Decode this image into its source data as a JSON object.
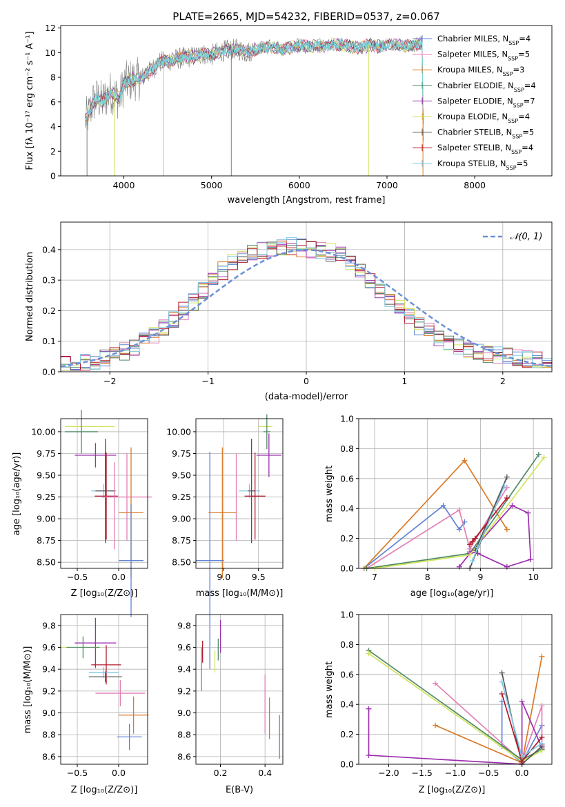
{
  "colors": {
    "gray": "#7f7f7f",
    "cyan": "#78d6dc",
    "Chabrier MILES": "#5f82d4",
    "Salpeter MILES": "#e47fb6",
    "Kroupa MILES": "#d97a26",
    "Chabrier ELODIE": "#4f8a66",
    "Salpeter ELODIE": "#9b2fae",
    "Kroupa ELODIE": "#d2e35b",
    "Chabrier STELIB": "#555555",
    "Salpeter STELIB": "#b2182b",
    "Kroupa STELIB": "#7ec8e3",
    "normal": "#6a8fd6"
  },
  "spectrum": {
    "title": "PLATE=2665, MJD=54232, FIBERID=0537, z=0.067",
    "xlabel": "wavelength [Angstrom, rest frame]",
    "ylabel": "Flux [fλ 10⁻¹⁷ erg cm⁻² s⁻¹ A⁻¹]",
    "xticks": [
      "4000",
      "5000",
      "6000",
      "7000",
      "8000"
    ],
    "yticks": [
      "0",
      "2",
      "4",
      "6",
      "8",
      "10",
      "12"
    ],
    "legend": [
      {
        "label": "Chabrier MILES, N",
        "sub": "SSP",
        "tail": "=4",
        "color": "Chabrier MILES"
      },
      {
        "label": "Salpeter MILES, N",
        "sub": "SSP",
        "tail": "=5",
        "color": "Salpeter MILES"
      },
      {
        "label": "Kroupa MILES, N",
        "sub": "SSP",
        "tail": "=3",
        "color": "Kroupa MILES"
      },
      {
        "label": "Chabrier ELODIE, N",
        "sub": "SSP",
        "tail": "=4",
        "color": "Chabrier ELODIE"
      },
      {
        "label": "Salpeter ELODIE, N",
        "sub": "SSP",
        "tail": "=7",
        "color": "Salpeter ELODIE"
      },
      {
        "label": "Kroupa ELODIE, N",
        "sub": "SSP",
        "tail": "=4",
        "color": "Kroupa ELODIE"
      },
      {
        "label": "Chabrier STELIB, N",
        "sub": "SSP",
        "tail": "=5",
        "color": "Chabrier STELIB"
      },
      {
        "label": "Salpeter STELIB, N",
        "sub": "SSP",
        "tail": "=4",
        "color": "Salpeter STELIB"
      },
      {
        "label": "Kroupa STELIB, N",
        "sub": "SSP",
        "tail": "=5",
        "color": "Kroupa STELIB"
      }
    ]
  },
  "residuals": {
    "xlabel": "(data-model)/error",
    "ylabel": "Normed distribution",
    "xticks": [
      "−2",
      "−1",
      "0",
      "1",
      "2"
    ],
    "yticks": [
      "0.0",
      "0.1",
      "0.2",
      "0.3",
      "0.4"
    ],
    "legend_label": "𝒩(0, 1)"
  },
  "panels": {
    "age_z": {
      "xlabel": "Z [log₁₀(Z/Z⊙)]",
      "ylabel": "age  [log₁₀(age/yr)]",
      "xticks": [
        "−0.5",
        "0.0"
      ],
      "yticks": [
        "8.50",
        "8.75",
        "9.00",
        "9.25",
        "9.50",
        "9.75",
        "10.00"
      ]
    },
    "age_mass": {
      "xlabel": "mass [log₁₀(M/M⊙)]",
      "xticks": [
        "9.0",
        "9.5"
      ],
      "yticks": [
        "8.50",
        "8.75",
        "9.00",
        "9.25",
        "9.50",
        "9.75",
        "10.00"
      ]
    },
    "weight_age": {
      "xlabel": "age  [log₁₀(age/yr)]",
      "ylabel": "mass weight",
      "xticks": [
        "7",
        "8",
        "9",
        "10"
      ],
      "yticks": [
        "0.0",
        "0.2",
        "0.4",
        "0.6",
        "0.8",
        "1.0"
      ]
    },
    "mass_z": {
      "xlabel": "Z [log₁₀(Z/Z⊙)]",
      "ylabel": "mass [log₁₀(M/M⊙)]",
      "xticks": [
        "−0.5",
        "0.0"
      ],
      "yticks": [
        "8.6",
        "8.8",
        "9.0",
        "9.2",
        "9.4",
        "9.6",
        "9.8"
      ]
    },
    "mass_ebv": {
      "xlabel": "E(B-V)",
      "xticks": [
        "0.2",
        "0.4"
      ],
      "yticks": [
        "8.6",
        "8.8",
        "9.0",
        "9.2",
        "9.4",
        "9.6",
        "9.8"
      ]
    },
    "weight_z": {
      "xlabel": "Z [log₁₀(Z/Z⊙)]",
      "ylabel": "mass weight",
      "xticks": [
        "−2.0",
        "−1.5",
        "−1.0",
        "−0.5",
        "0.0"
      ],
      "yticks": [
        "0.0",
        "0.2",
        "0.4",
        "0.6",
        "0.8",
        "1.0"
      ]
    }
  },
  "chart_data": [
    {
      "type": "line",
      "title": "PLATE=2665, MJD=54232, FIBERID=0537, z=0.067",
      "xlabel": "wavelength [Angstrom, rest frame]",
      "ylabel": "Flux [fλ 10⁻¹⁷ erg cm⁻² s⁻¹ A⁻¹]",
      "xlim": [
        3280,
        8880
      ],
      "ylim": [
        0,
        12.2
      ],
      "legend_position": "top-right",
      "data_curve": {
        "x": [
          3560,
          3600,
          3650,
          3700,
          3750,
          3800,
          3850,
          3900,
          3950,
          4000,
          4100,
          4200,
          4300,
          4400,
          4500,
          4600,
          4700,
          4800,
          4900,
          5000,
          5100,
          5200,
          5300,
          5400,
          5500,
          5600,
          5700,
          5800,
          5900,
          6000,
          6100,
          6200,
          6300,
          6400,
          6500,
          6600,
          6700,
          6800,
          6900,
          7000,
          7100,
          7200,
          7300,
          7400,
          7420
        ],
        "y": [
          4.5,
          5.0,
          6.0,
          6.3,
          6.0,
          6.4,
          6.8,
          6.6,
          6.2,
          7.5,
          7.8,
          7.9,
          8.5,
          9.2,
          9.3,
          9.5,
          9.6,
          9.7,
          9.9,
          9.8,
          10.1,
          10.2,
          10.3,
          10.0,
          10.3,
          10.4,
          10.5,
          10.2,
          10.4,
          10.6,
          10.5,
          10.6,
          10.5,
          10.7,
          10.6,
          10.5,
          10.4,
          10.6,
          10.5,
          10.6,
          10.7,
          10.5,
          10.6,
          10.8,
          0
        ]
      },
      "drop_lines_x": [
        3580,
        3890,
        4450,
        5225,
        6790,
        7410
      ],
      "series_names": [
        "Chabrier MILES",
        "Salpeter MILES",
        "Kroupa MILES",
        "Chabrier ELODIE",
        "Salpeter ELODIE",
        "Kroupa ELODIE",
        "Chabrier STELIB",
        "Salpeter STELIB",
        "Kroupa STELIB"
      ]
    },
    {
      "type": "histogram",
      "xlabel": "(data-model)/error",
      "ylabel": "Normed distribution",
      "xlim": [
        -2.5,
        2.5
      ],
      "ylim": [
        0,
        0.49
      ],
      "bin_centers": [
        -2.45,
        -2.35,
        -2.25,
        -2.15,
        -2.05,
        -1.95,
        -1.85,
        -1.75,
        -1.65,
        -1.55,
        -1.45,
        -1.35,
        -1.25,
        -1.15,
        -1.05,
        -0.95,
        -0.85,
        -0.75,
        -0.65,
        -0.55,
        -0.45,
        -0.35,
        -0.25,
        -0.15,
        -0.05,
        0.05,
        0.15,
        0.25,
        0.35,
        0.45,
        0.55,
        0.65,
        0.75,
        0.85,
        0.95,
        1.05,
        1.15,
        1.25,
        1.35,
        1.45,
        1.55,
        1.65,
        1.75,
        1.85,
        1.95,
        2.05,
        2.15,
        2.25,
        2.35,
        2.45
      ],
      "typical_density": [
        0.022,
        0.025,
        0.03,
        0.038,
        0.045,
        0.055,
        0.068,
        0.082,
        0.1,
        0.12,
        0.145,
        0.17,
        0.2,
        0.23,
        0.265,
        0.3,
        0.33,
        0.36,
        0.38,
        0.395,
        0.4,
        0.405,
        0.41,
        0.41,
        0.405,
        0.4,
        0.395,
        0.39,
        0.38,
        0.36,
        0.335,
        0.3,
        0.27,
        0.24,
        0.21,
        0.18,
        0.15,
        0.13,
        0.11,
        0.095,
        0.085,
        0.075,
        0.068,
        0.06,
        0.055,
        0.05,
        0.045,
        0.04,
        0.035,
        0.03
      ],
      "normal_curve": {
        "label": "𝒩(0, 1)",
        "mean": 0,
        "sigma": 1
      },
      "series_names": [
        "Chabrier MILES",
        "Salpeter MILES",
        "Kroupa MILES",
        "Chabrier ELODIE",
        "Salpeter ELODIE",
        "Kroupa ELODIE",
        "Chabrier STELIB",
        "Salpeter STELIB",
        "Kroupa STELIB"
      ]
    },
    {
      "type": "errorbar",
      "panel": "age vs Z",
      "xlim": [
        -0.7,
        0.35
      ],
      "ylim": [
        8.43,
        10.15
      ],
      "points": [
        {
          "series": "Kroupa ELODIE",
          "x": -0.35,
          "y": 10.06,
          "xerr": 0.3,
          "yerr": 0
        },
        {
          "series": "Chabrier ELODIE",
          "x": -0.45,
          "y": 10.0,
          "xerr": 0.2,
          "yerr": 0.25
        },
        {
          "series": "Salpeter ELODIE",
          "x": -0.28,
          "y": 9.73,
          "xerr": 0.25,
          "yerr": 0.14
        },
        {
          "series": "Chabrier MILES",
          "x": -0.16,
          "y": 9.62,
          "xerr": 0,
          "yerr": 0.25
        },
        {
          "series": "Kroupa STELIB",
          "x": -0.18,
          "y": 9.32,
          "xerr": 0.15,
          "yerr": 0.08
        },
        {
          "series": "Chabrier STELIB",
          "x": -0.16,
          "y": 9.32,
          "xerr": 0.12,
          "yerr": 0.6
        },
        {
          "series": "Salpeter STELIB",
          "x": -0.15,
          "y": 9.26,
          "xerr": 0.14,
          "yerr": 0.5
        },
        {
          "series": "Salpeter MILES",
          "x": 0.1,
          "y": 9.25,
          "xerr": 0.3,
          "yerr": 0.5
        },
        {
          "series": "Salpeter MILES",
          "x": -0.05,
          "y": 9.15,
          "xerr": 0,
          "yerr": 0.5
        },
        {
          "series": "Kroupa MILES",
          "x": 0.15,
          "y": 9.07,
          "xerr": 0.15,
          "yerr": 0.75
        },
        {
          "series": "Chabrier MILES",
          "x": 0.15,
          "y": 8.52,
          "xerr": 0.15,
          "yerr": 0.65
        }
      ]
    },
    {
      "type": "errorbar",
      "panel": "age vs mass",
      "xlim": [
        8.6,
        9.85
      ],
      "ylim": [
        8.43,
        10.15
      ],
      "points": [
        {
          "series": "Kroupa ELODIE",
          "x": 9.6,
          "y": 10.06,
          "xerr": 0.1,
          "yerr": 0
        },
        {
          "series": "Chabrier ELODIE",
          "x": 9.62,
          "y": 10.0,
          "xerr": 0.05,
          "yerr": 0.2
        },
        {
          "series": "Salpeter ELODIE",
          "x": 9.65,
          "y": 9.73,
          "xerr": 0.18,
          "yerr": 0.25
        },
        {
          "series": "Kroupa STELIB",
          "x": 9.37,
          "y": 9.32,
          "xerr": 0.15,
          "yerr": 0.08
        },
        {
          "series": "Chabrier STELIB",
          "x": 9.4,
          "y": 9.32,
          "xerr": 0.05,
          "yerr": 0.6
        },
        {
          "series": "Salpeter STELIB",
          "x": 9.45,
          "y": 9.26,
          "xerr": 0.15,
          "yerr": 0.5
        },
        {
          "series": "Salpeter MILES",
          "x": 9.18,
          "y": 9.25,
          "xerr": 0,
          "yerr": 0.5
        },
        {
          "series": "Kroupa MILES",
          "x": 8.98,
          "y": 9.07,
          "xerr": 0.2,
          "yerr": 0.75
        },
        {
          "series": "Chabrier MILES",
          "x": 8.8,
          "y": 8.52,
          "xerr": 0.2,
          "yerr": 1.25
        }
      ]
    },
    {
      "type": "line",
      "panel": "mass weight vs age",
      "xlim": [
        6.7,
        10.35
      ],
      "ylim": [
        0,
        1.0
      ],
      "series": [
        {
          "series": "Chabrier MILES",
          "x": [
            6.8,
            8.3,
            8.6,
            8.7
          ],
          "y": [
            0.0,
            0.42,
            0.26,
            0.31
          ]
        },
        {
          "series": "Salpeter MILES",
          "x": [
            6.85,
            8.6,
            8.8,
            9.5
          ],
          "y": [
            0.0,
            0.39,
            0.13,
            0.54
          ]
        },
        {
          "series": "Kroupa MILES",
          "x": [
            6.8,
            8.7,
            9.5
          ],
          "y": [
            0.0,
            0.72,
            0.26
          ]
        },
        {
          "series": "Chabrier ELODIE",
          "x": [
            6.85,
            8.8,
            10.1
          ],
          "y": [
            0.0,
            0.1,
            0.76
          ]
        },
        {
          "series": "Salpeter ELODIE",
          "x": [
            8.6,
            8.8,
            9.6,
            9.9,
            9.95,
            9.5,
            8.95,
            8.8
          ],
          "y": [
            0.01,
            0.1,
            0.42,
            0.37,
            0.06,
            0.01,
            0.1,
            0.11
          ]
        },
        {
          "series": "Kroupa ELODIE",
          "x": [
            7.0,
            8.8,
            10.2
          ],
          "y": [
            0.0,
            0.09,
            0.74
          ]
        },
        {
          "series": "Chabrier STELIB",
          "x": [
            8.8,
            9.5,
            8.9
          ],
          "y": [
            0.0,
            0.61,
            0.12
          ]
        },
        {
          "series": "Salpeter STELIB",
          "x": [
            8.8,
            8.9,
            9.5,
            8.85
          ],
          "y": [
            0.16,
            0.2,
            0.47,
            0.18
          ]
        },
        {
          "series": "Kroupa STELIB",
          "x": [
            8.85,
            8.95,
            9.45
          ],
          "y": [
            0.05,
            0.14,
            0.55
          ]
        }
      ]
    },
    {
      "type": "errorbar",
      "panel": "mass vs Z",
      "xlim": [
        -0.7,
        0.35
      ],
      "ylim": [
        8.53,
        9.9
      ],
      "points": [
        {
          "series": "Salpeter ELODIE",
          "x": -0.28,
          "y": 9.64,
          "xerr": 0.25,
          "yerr": 0.23
        },
        {
          "series": "Kroupa ELODIE",
          "x": -0.45,
          "y": 9.6,
          "xerr": 0.25,
          "yerr": 0
        },
        {
          "series": "Chabrier ELODIE",
          "x": -0.43,
          "y": 9.6,
          "xerr": 0.2,
          "yerr": 0.1
        },
        {
          "series": "Salpeter STELIB",
          "x": -0.15,
          "y": 9.44,
          "xerr": 0.18,
          "yerr": 0.18
        },
        {
          "series": "Kroupa STELIB",
          "x": -0.18,
          "y": 9.37,
          "xerr": 0.18,
          "yerr": 0.05
        },
        {
          "series": "Chabrier STELIB",
          "x": -0.16,
          "y": 9.33,
          "xerr": 0.2,
          "yerr": 0.05
        },
        {
          "series": "Salpeter MILES",
          "x": 0.02,
          "y": 9.18,
          "xerr": 0.3,
          "yerr": 0.12
        },
        {
          "series": "Kroupa MILES",
          "x": 0.18,
          "y": 8.98,
          "xerr": 0.18,
          "yerr": 0.17
        },
        {
          "series": "Chabrier MILES",
          "x": 0.13,
          "y": 8.78,
          "xerr": 0.15,
          "yerr": 0.12
        }
      ]
    },
    {
      "type": "errorbar",
      "panel": "mass vs E(B-V)",
      "xlim": [
        0.09,
        0.48
      ],
      "ylim": [
        8.53,
        9.9
      ],
      "points": [
        {
          "series": "Chabrier MILES",
          "x": 0.115,
          "y": 9.4,
          "xerr": 0,
          "yerr": 0.2
        },
        {
          "series": "Salpeter STELIB",
          "x": 0.12,
          "y": 9.56,
          "xerr": 0,
          "yerr": 0.1
        },
        {
          "series": "Kroupa ELODIE",
          "x": 0.175,
          "y": 9.47,
          "xerr": 0,
          "yerr": 0.1
        },
        {
          "series": "Chabrier ELODIE",
          "x": 0.19,
          "y": 9.58,
          "xerr": 0,
          "yerr": 0.1
        },
        {
          "series": "Salpeter ELODIE",
          "x": 0.2,
          "y": 9.7,
          "xerr": 0,
          "yerr": 0.15
        },
        {
          "series": "Salpeter MILES",
          "x": 0.4,
          "y": 9.08,
          "xerr": 0,
          "yerr": 0.27
        },
        {
          "series": "Kroupa MILES",
          "x": 0.42,
          "y": 8.95,
          "xerr": 0,
          "yerr": 0.19
        },
        {
          "series": "Chabrier MILES",
          "x": 0.465,
          "y": 8.78,
          "xerr": 0,
          "yerr": 0.2
        }
      ]
    },
    {
      "type": "line",
      "panel": "mass weight vs Z",
      "xlim": [
        -2.45,
        0.45
      ],
      "ylim": [
        0,
        1.0
      ],
      "series": [
        {
          "series": "Chabrier MILES",
          "x": [
            -0.3,
            -0.3,
            0.0,
            0.3
          ],
          "y": [
            0.42,
            0.12,
            0.01,
            0.26
          ]
        },
        {
          "series": "Salpeter MILES",
          "x": [
            -1.3,
            0.0,
            0.3,
            0.3
          ],
          "y": [
            0.54,
            0.02,
            0.39,
            0.13
          ]
        },
        {
          "series": "Kroupa MILES",
          "x": [
            -1.3,
            0.0,
            0.3
          ],
          "y": [
            0.26,
            0.01,
            0.72
          ]
        },
        {
          "series": "Chabrier ELODIE",
          "x": [
            -2.3,
            0.0,
            0.3
          ],
          "y": [
            0.76,
            0.03,
            0.1
          ]
        },
        {
          "series": "Salpeter ELODIE",
          "x": [
            -2.3,
            -2.3,
            0.0,
            0.0,
            0.3
          ],
          "y": [
            0.37,
            0.06,
            0.0,
            0.42,
            0.11
          ]
        },
        {
          "series": "Kroupa ELODIE",
          "x": [
            -2.3,
            0.0,
            0.3
          ],
          "y": [
            0.74,
            0.02,
            0.09
          ]
        },
        {
          "series": "Chabrier STELIB",
          "x": [
            -0.3,
            0.0,
            0.3
          ],
          "y": [
            0.61,
            0.0,
            0.12
          ]
        },
        {
          "series": "Salpeter STELIB",
          "x": [
            -0.3,
            0.0,
            0.3
          ],
          "y": [
            0.47,
            0.02,
            0.18
          ]
        },
        {
          "series": "Kroupa STELIB",
          "x": [
            -0.3,
            0.0,
            0.3
          ],
          "y": [
            0.55,
            0.05,
            0.14
          ]
        }
      ]
    }
  ]
}
